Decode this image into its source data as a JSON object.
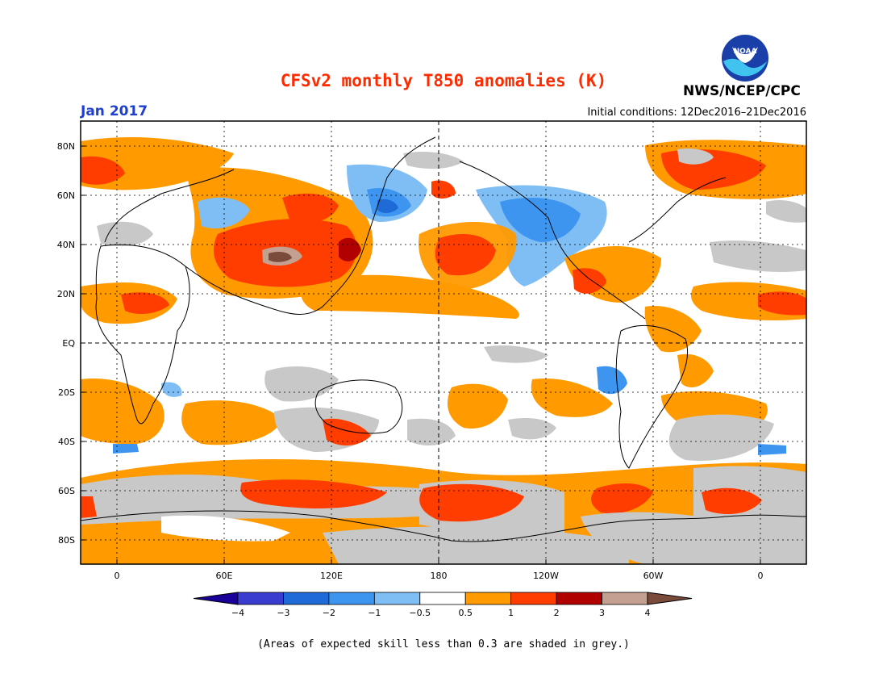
{
  "header": {
    "title": "CFSv2 monthly T850 anomalies (K)",
    "period": "Jan 2017",
    "initial_conditions": "Initial conditions: 12Dec2016–21Dec2016",
    "agency": "NWS/NCEP/CPC",
    "logo_text": "NOAA"
  },
  "colors": {
    "title": "#ff2a00",
    "period": "#1f3fd0",
    "grey_low_skill": "#c8c8c8",
    "neg4": "#1a0099",
    "neg3": "#3a3ccf",
    "neg2": "#1e6ad6",
    "neg1": "#3d95f0",
    "neg05": "#7fbef5",
    "neutral": "#ffffff",
    "pos05": "#ff9a00",
    "pos1": "#ff3d00",
    "pos2": "#b00000",
    "pos3": "#c4a090",
    "pos4": "#7a4a3a"
  },
  "map": {
    "lat_labels": [
      "80N",
      "60N",
      "40N",
      "20N",
      "EQ",
      "20S",
      "40S",
      "60S",
      "80S"
    ],
    "lon_labels": [
      "0",
      "60E",
      "120E",
      "180",
      "120W",
      "60W",
      "0"
    ]
  },
  "colorbar": {
    "labels": [
      "−4",
      "−3",
      "−2",
      "−1",
      "−0.5",
      "0.5",
      "1",
      "2",
      "3",
      "4"
    ],
    "bins": [
      "neg4",
      "neg3",
      "neg2",
      "neg1",
      "neg05",
      "neutral",
      "pos05",
      "pos1",
      "pos2",
      "pos3"
    ]
  },
  "footnote": "(Areas of expected skill less than 0.3 are shaded in grey.)"
}
